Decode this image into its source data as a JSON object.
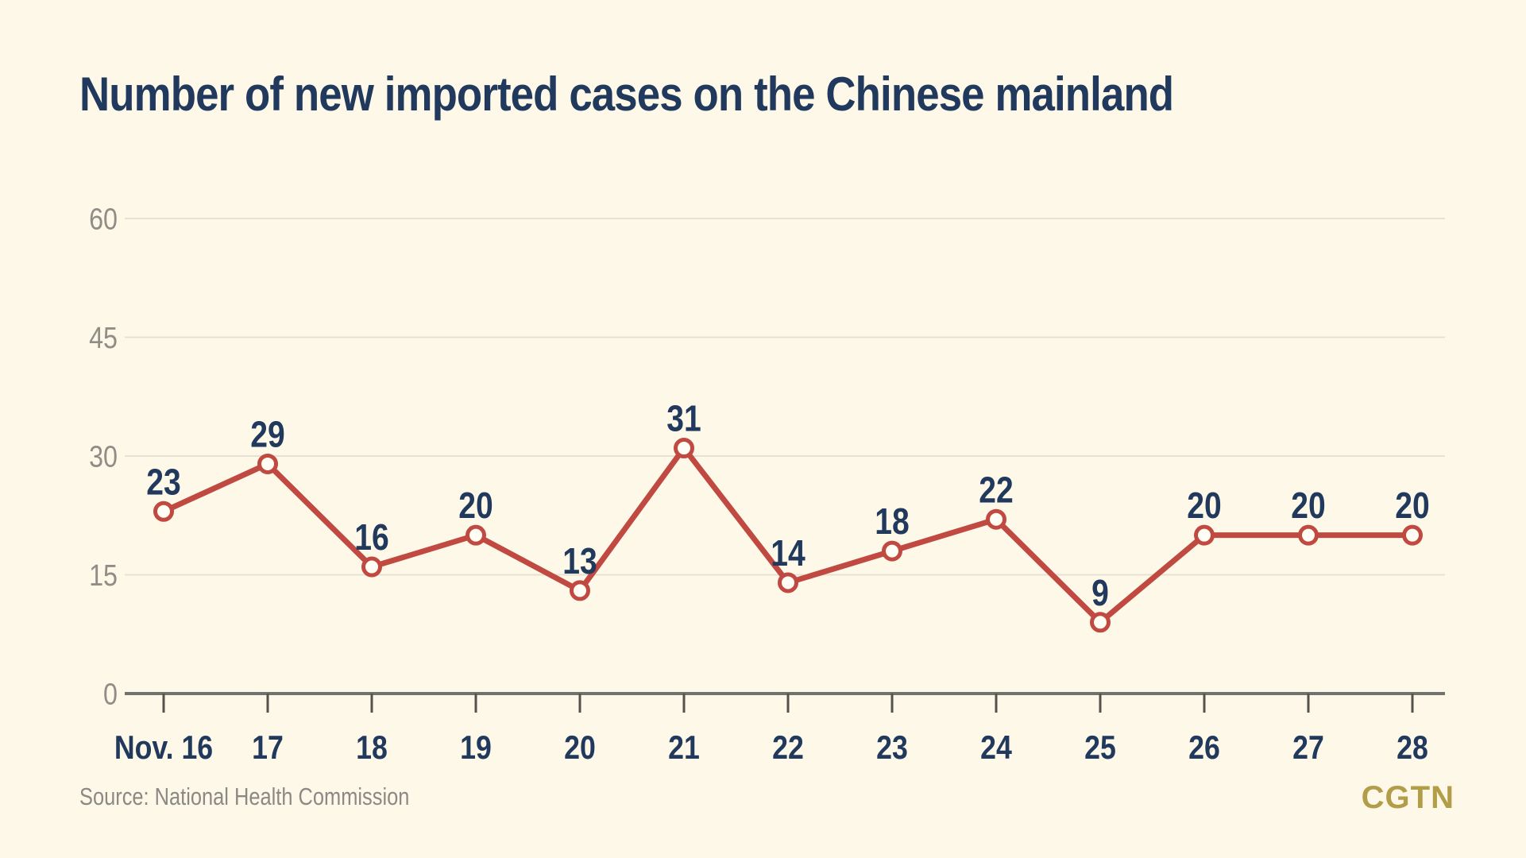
{
  "header": {
    "title": "Number of new imported cases on the Chinese mainland"
  },
  "footer": {
    "source": "Source: National Health Commission",
    "logo": "CGTN"
  },
  "colors": {
    "background": "#FDF8E8",
    "title_navy": "#21395C",
    "label_navy": "#21395C",
    "line_red": "#C04A41",
    "marker_fill": "#FFFDF4",
    "gridline": "#E6E2D3",
    "axis": "#71716D",
    "tick": "#55524B",
    "y_label_gray": "#8F8D86",
    "source_gray": "#8B8984",
    "logo_gold": "#B29D49"
  },
  "chart_data": {
    "type": "line",
    "title": "Number of new imported cases on the Chinese mainland",
    "categories": [
      "Nov. 16",
      "17",
      "18",
      "19",
      "20",
      "21",
      "22",
      "23",
      "24",
      "25",
      "26",
      "27",
      "28"
    ],
    "values": [
      23,
      29,
      16,
      20,
      13,
      31,
      14,
      18,
      22,
      9,
      20,
      20,
      20
    ],
    "xlabel": "",
    "ylabel": "",
    "ylim": [
      0,
      60
    ],
    "yticks": [
      0,
      15,
      30,
      45,
      60
    ],
    "grid": true,
    "legend": "none",
    "marker": "open-circle",
    "series_color": "#C04A41",
    "data_label_color": "#21395C"
  }
}
